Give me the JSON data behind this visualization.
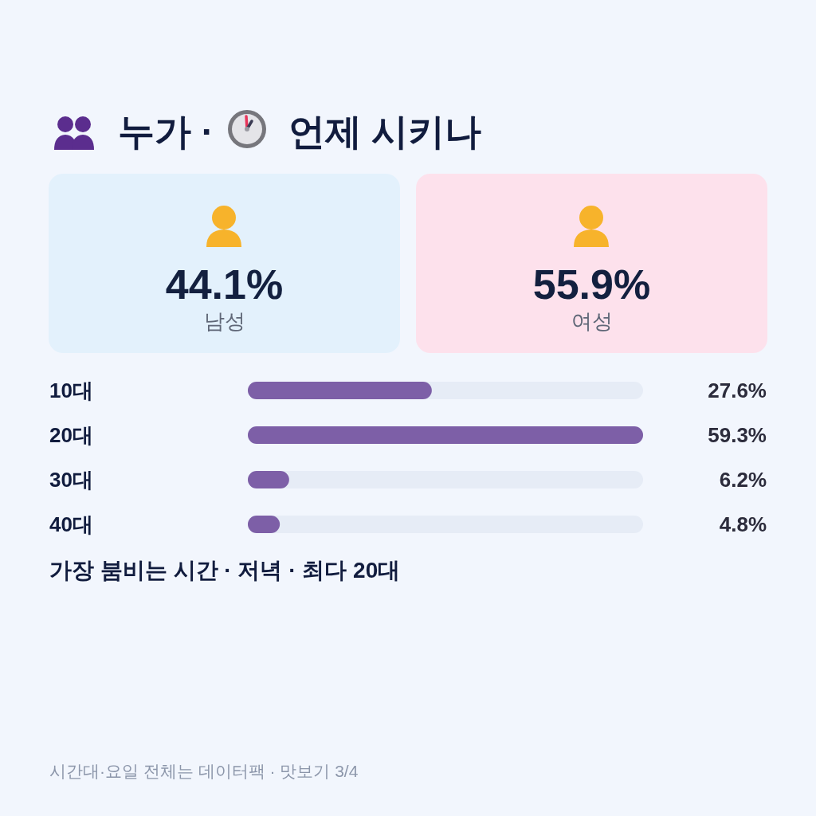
{
  "chart_data": [
    {
      "type": "other",
      "title": "누가 · 언제 시키나",
      "categories": [
        "남성",
        "여성"
      ],
      "value_labels": [
        "44.1%",
        "55.9%"
      ],
      "colors": [
        "#e3f1fc",
        "#fde1ec"
      ]
    },
    {
      "type": "bar",
      "orientation": "horizontal",
      "categories": [
        "10대",
        "20대",
        "30대",
        "40대"
      ],
      "values": [
        27.6,
        59.3,
        6.2,
        4.8
      ],
      "value_labels": [
        "27.6%",
        "59.3%",
        "6.2%",
        "4.8%"
      ],
      "color": "#7d5fa7",
      "xlim": [
        0,
        59.3
      ],
      "tick_labels": "y",
      "annotations": [
        "가장 붐비는 시간 · 저녁 · 최다 20대",
        "시간대·요일 전체는 데이터팩 · 맛보기 3/4"
      ]
    }
  ]
}
